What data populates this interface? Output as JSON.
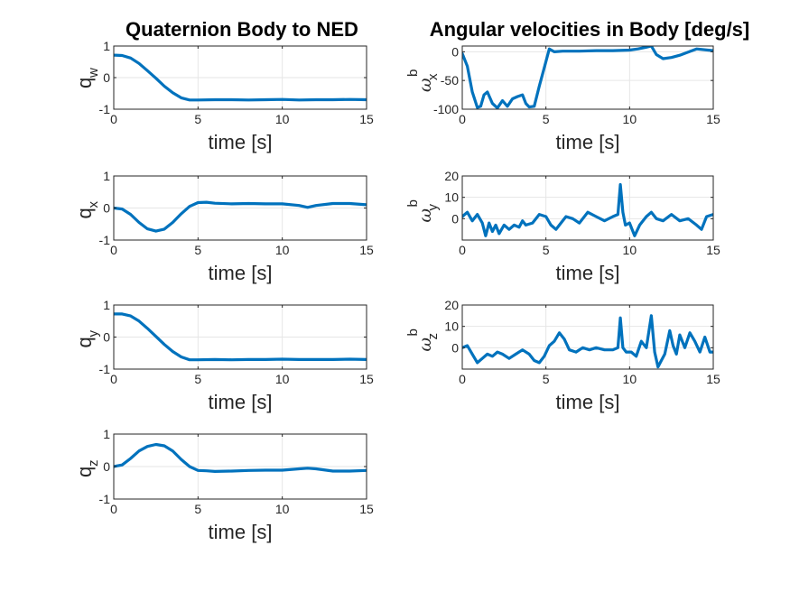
{
  "figure": {
    "title_left": "Quaternion Body to NED",
    "title_right": "Angular velocities in Body [deg/s]",
    "line_color": "#0072BD",
    "grid_color": "#e6e6e6",
    "axis_color": "#262626"
  },
  "chart_data": [
    {
      "type": "line",
      "id": "qw",
      "ylabel_main": "q",
      "ylabel_sub": "w",
      "ylabel_sup": "",
      "xlabel": "time [s]",
      "xlim": [
        0,
        15
      ],
      "ylim": [
        -1,
        1
      ],
      "xticks": [
        0,
        5,
        10,
        15
      ],
      "yticks": [
        -1,
        0,
        1
      ],
      "grid": true,
      "x": [
        0,
        0.5,
        1,
        1.5,
        2,
        2.5,
        3,
        3.5,
        4,
        4.5,
        5,
        6,
        7,
        8,
        9,
        10,
        11,
        12,
        13,
        14,
        15
      ],
      "y": [
        0.71,
        0.7,
        0.62,
        0.45,
        0.22,
        -0.02,
        -0.27,
        -0.48,
        -0.64,
        -0.71,
        -0.71,
        -0.7,
        -0.7,
        -0.71,
        -0.7,
        -0.69,
        -0.71,
        -0.7,
        -0.7,
        -0.69,
        -0.7
      ]
    },
    {
      "type": "line",
      "id": "qx",
      "ylabel_main": "q",
      "ylabel_sub": "x",
      "ylabel_sup": "",
      "xlabel": "time [s]",
      "xlim": [
        0,
        15
      ],
      "ylim": [
        -1,
        1
      ],
      "xticks": [
        0,
        5,
        10,
        15
      ],
      "yticks": [
        -1,
        0,
        1
      ],
      "grid": true,
      "x": [
        0,
        0.5,
        1,
        1.5,
        2,
        2.5,
        3,
        3.5,
        4,
        4.5,
        5,
        5.5,
        6,
        7,
        8,
        9,
        10,
        11,
        11.5,
        12,
        13,
        14,
        15
      ],
      "y": [
        0.0,
        -0.03,
        -0.2,
        -0.45,
        -0.65,
        -0.72,
        -0.66,
        -0.45,
        -0.18,
        0.05,
        0.17,
        0.18,
        0.15,
        0.13,
        0.14,
        0.13,
        0.13,
        0.08,
        0.02,
        0.08,
        0.14,
        0.14,
        0.1
      ]
    },
    {
      "type": "line",
      "id": "qy",
      "ylabel_main": "q",
      "ylabel_sub": "y",
      "ylabel_sup": "",
      "xlabel": "time [s]",
      "xlim": [
        0,
        15
      ],
      "ylim": [
        -1,
        1
      ],
      "xticks": [
        0,
        5,
        10,
        15
      ],
      "yticks": [
        -1,
        0,
        1
      ],
      "grid": true,
      "x": [
        0,
        0.5,
        1,
        1.5,
        2,
        2.5,
        3,
        3.5,
        4,
        4.5,
        5,
        6,
        7,
        8,
        9,
        10,
        11,
        12,
        13,
        14,
        15
      ],
      "y": [
        0.72,
        0.72,
        0.66,
        0.5,
        0.27,
        0.02,
        -0.23,
        -0.45,
        -0.62,
        -0.71,
        -0.71,
        -0.7,
        -0.71,
        -0.7,
        -0.7,
        -0.69,
        -0.7,
        -0.7,
        -0.7,
        -0.69,
        -0.7
      ]
    },
    {
      "type": "line",
      "id": "qz",
      "ylabel_main": "q",
      "ylabel_sub": "z",
      "ylabel_sup": "",
      "xlabel": "time [s]",
      "xlim": [
        0,
        15
      ],
      "ylim": [
        -1,
        1
      ],
      "xticks": [
        0,
        5,
        10,
        15
      ],
      "yticks": [
        -1,
        0,
        1
      ],
      "grid": true,
      "x": [
        0,
        0.5,
        1,
        1.5,
        2,
        2.5,
        3,
        3.5,
        4,
        4.5,
        5,
        5.5,
        6,
        7,
        8,
        9,
        10,
        11,
        11.5,
        12,
        13,
        14,
        15
      ],
      "y": [
        0.0,
        0.05,
        0.25,
        0.48,
        0.62,
        0.68,
        0.64,
        0.48,
        0.22,
        0.0,
        -0.12,
        -0.13,
        -0.15,
        -0.14,
        -0.12,
        -0.11,
        -0.11,
        -0.07,
        -0.05,
        -0.07,
        -0.14,
        -0.14,
        -0.12
      ]
    },
    {
      "type": "line",
      "id": "wx",
      "ylabel_main": "ω",
      "ylabel_sub": "x",
      "ylabel_sup": "b",
      "xlabel": "time [s]",
      "xlim": [
        0,
        15
      ],
      "ylim": [
        -100,
        10
      ],
      "xticks": [
        0,
        5,
        10,
        15
      ],
      "yticks": [
        -100,
        -50,
        0
      ],
      "grid": true,
      "x": [
        0,
        0.3,
        0.6,
        0.9,
        1.1,
        1.3,
        1.5,
        1.8,
        2.1,
        2.4,
        2.7,
        3.0,
        3.3,
        3.6,
        3.8,
        4.0,
        4.3,
        4.6,
        4.9,
        5.2,
        5.5,
        6,
        7,
        8,
        9,
        10,
        10.5,
        11,
        11.3,
        11.6,
        12,
        12.5,
        13,
        14,
        15
      ],
      "y": [
        -3,
        -25,
        -70,
        -97,
        -95,
        -75,
        -70,
        -90,
        -98,
        -85,
        -95,
        -82,
        -78,
        -75,
        -90,
        -96,
        -95,
        -60,
        -28,
        5,
        0,
        1,
        1,
        2,
        2,
        3,
        5,
        8,
        10,
        -5,
        -12,
        -10,
        -6,
        5,
        2
      ]
    },
    {
      "type": "line",
      "id": "wy",
      "ylabel_main": "ω",
      "ylabel_sub": "y",
      "ylabel_sup": "b",
      "xlabel": "time [s]",
      "xlim": [
        0,
        15
      ],
      "ylim": [
        -10,
        20
      ],
      "xticks": [
        0,
        5,
        10,
        15
      ],
      "yticks": [
        0,
        10,
        20
      ],
      "grid": true,
      "x": [
        0,
        0.3,
        0.6,
        0.9,
        1.2,
        1.4,
        1.6,
        1.8,
        2.0,
        2.2,
        2.5,
        2.8,
        3.1,
        3.4,
        3.6,
        3.8,
        4.2,
        4.6,
        5.0,
        5.3,
        5.6,
        5.9,
        6.2,
        6.6,
        7.0,
        7.5,
        8.0,
        8.5,
        9.0,
        9.3,
        9.45,
        9.6,
        9.75,
        10.0,
        10.3,
        10.6,
        11.0,
        11.3,
        11.6,
        12,
        12.5,
        13,
        13.5,
        14,
        14.3,
        14.6,
        15
      ],
      "y": [
        1,
        3,
        -1,
        2,
        -2,
        -8,
        -2,
        -6,
        -3,
        -7,
        -3,
        -5,
        -3,
        -4,
        -1,
        -3,
        -2,
        2,
        1,
        -3,
        -5,
        -2,
        1,
        0,
        -2,
        3,
        1,
        -1,
        1,
        2,
        16,
        3,
        -3,
        -2,
        -8,
        -3,
        1,
        3,
        0,
        -1,
        2,
        -1,
        0,
        -3,
        -5,
        1,
        2
      ]
    },
    {
      "type": "line",
      "id": "wz",
      "ylabel_main": "ω",
      "ylabel_sub": "z",
      "ylabel_sup": "b",
      "xlabel": "time [s]",
      "xlim": [
        0,
        15
      ],
      "ylim": [
        -10,
        20
      ],
      "xticks": [
        0,
        5,
        10,
        15
      ],
      "yticks": [
        0,
        10,
        20
      ],
      "grid": true,
      "x": [
        0,
        0.3,
        0.6,
        0.9,
        1.2,
        1.5,
        1.8,
        2.1,
        2.4,
        2.8,
        3.2,
        3.6,
        4.0,
        4.3,
        4.6,
        4.9,
        5.2,
        5.5,
        5.8,
        6.1,
        6.4,
        6.8,
        7.2,
        7.6,
        8.0,
        8.5,
        9.0,
        9.3,
        9.45,
        9.6,
        9.8,
        10.1,
        10.4,
        10.7,
        11.0,
        11.3,
        11.5,
        11.7,
        11.9,
        12.1,
        12.4,
        12.6,
        12.8,
        13.0,
        13.3,
        13.6,
        13.9,
        14.2,
        14.5,
        14.8,
        15
      ],
      "y": [
        0,
        1,
        -3,
        -7,
        -5,
        -3,
        -4,
        -2,
        -3,
        -5,
        -3,
        -1,
        -3,
        -6,
        -7,
        -4,
        1,
        3,
        7,
        4,
        -1,
        -2,
        0,
        -1,
        0,
        -1,
        -1,
        0,
        14,
        0,
        -2,
        -2,
        -4,
        3,
        0,
        15,
        -2,
        -9,
        -6,
        -3,
        8,
        1,
        -3,
        6,
        0,
        7,
        3,
        -2,
        5,
        -2,
        -2
      ]
    }
  ]
}
